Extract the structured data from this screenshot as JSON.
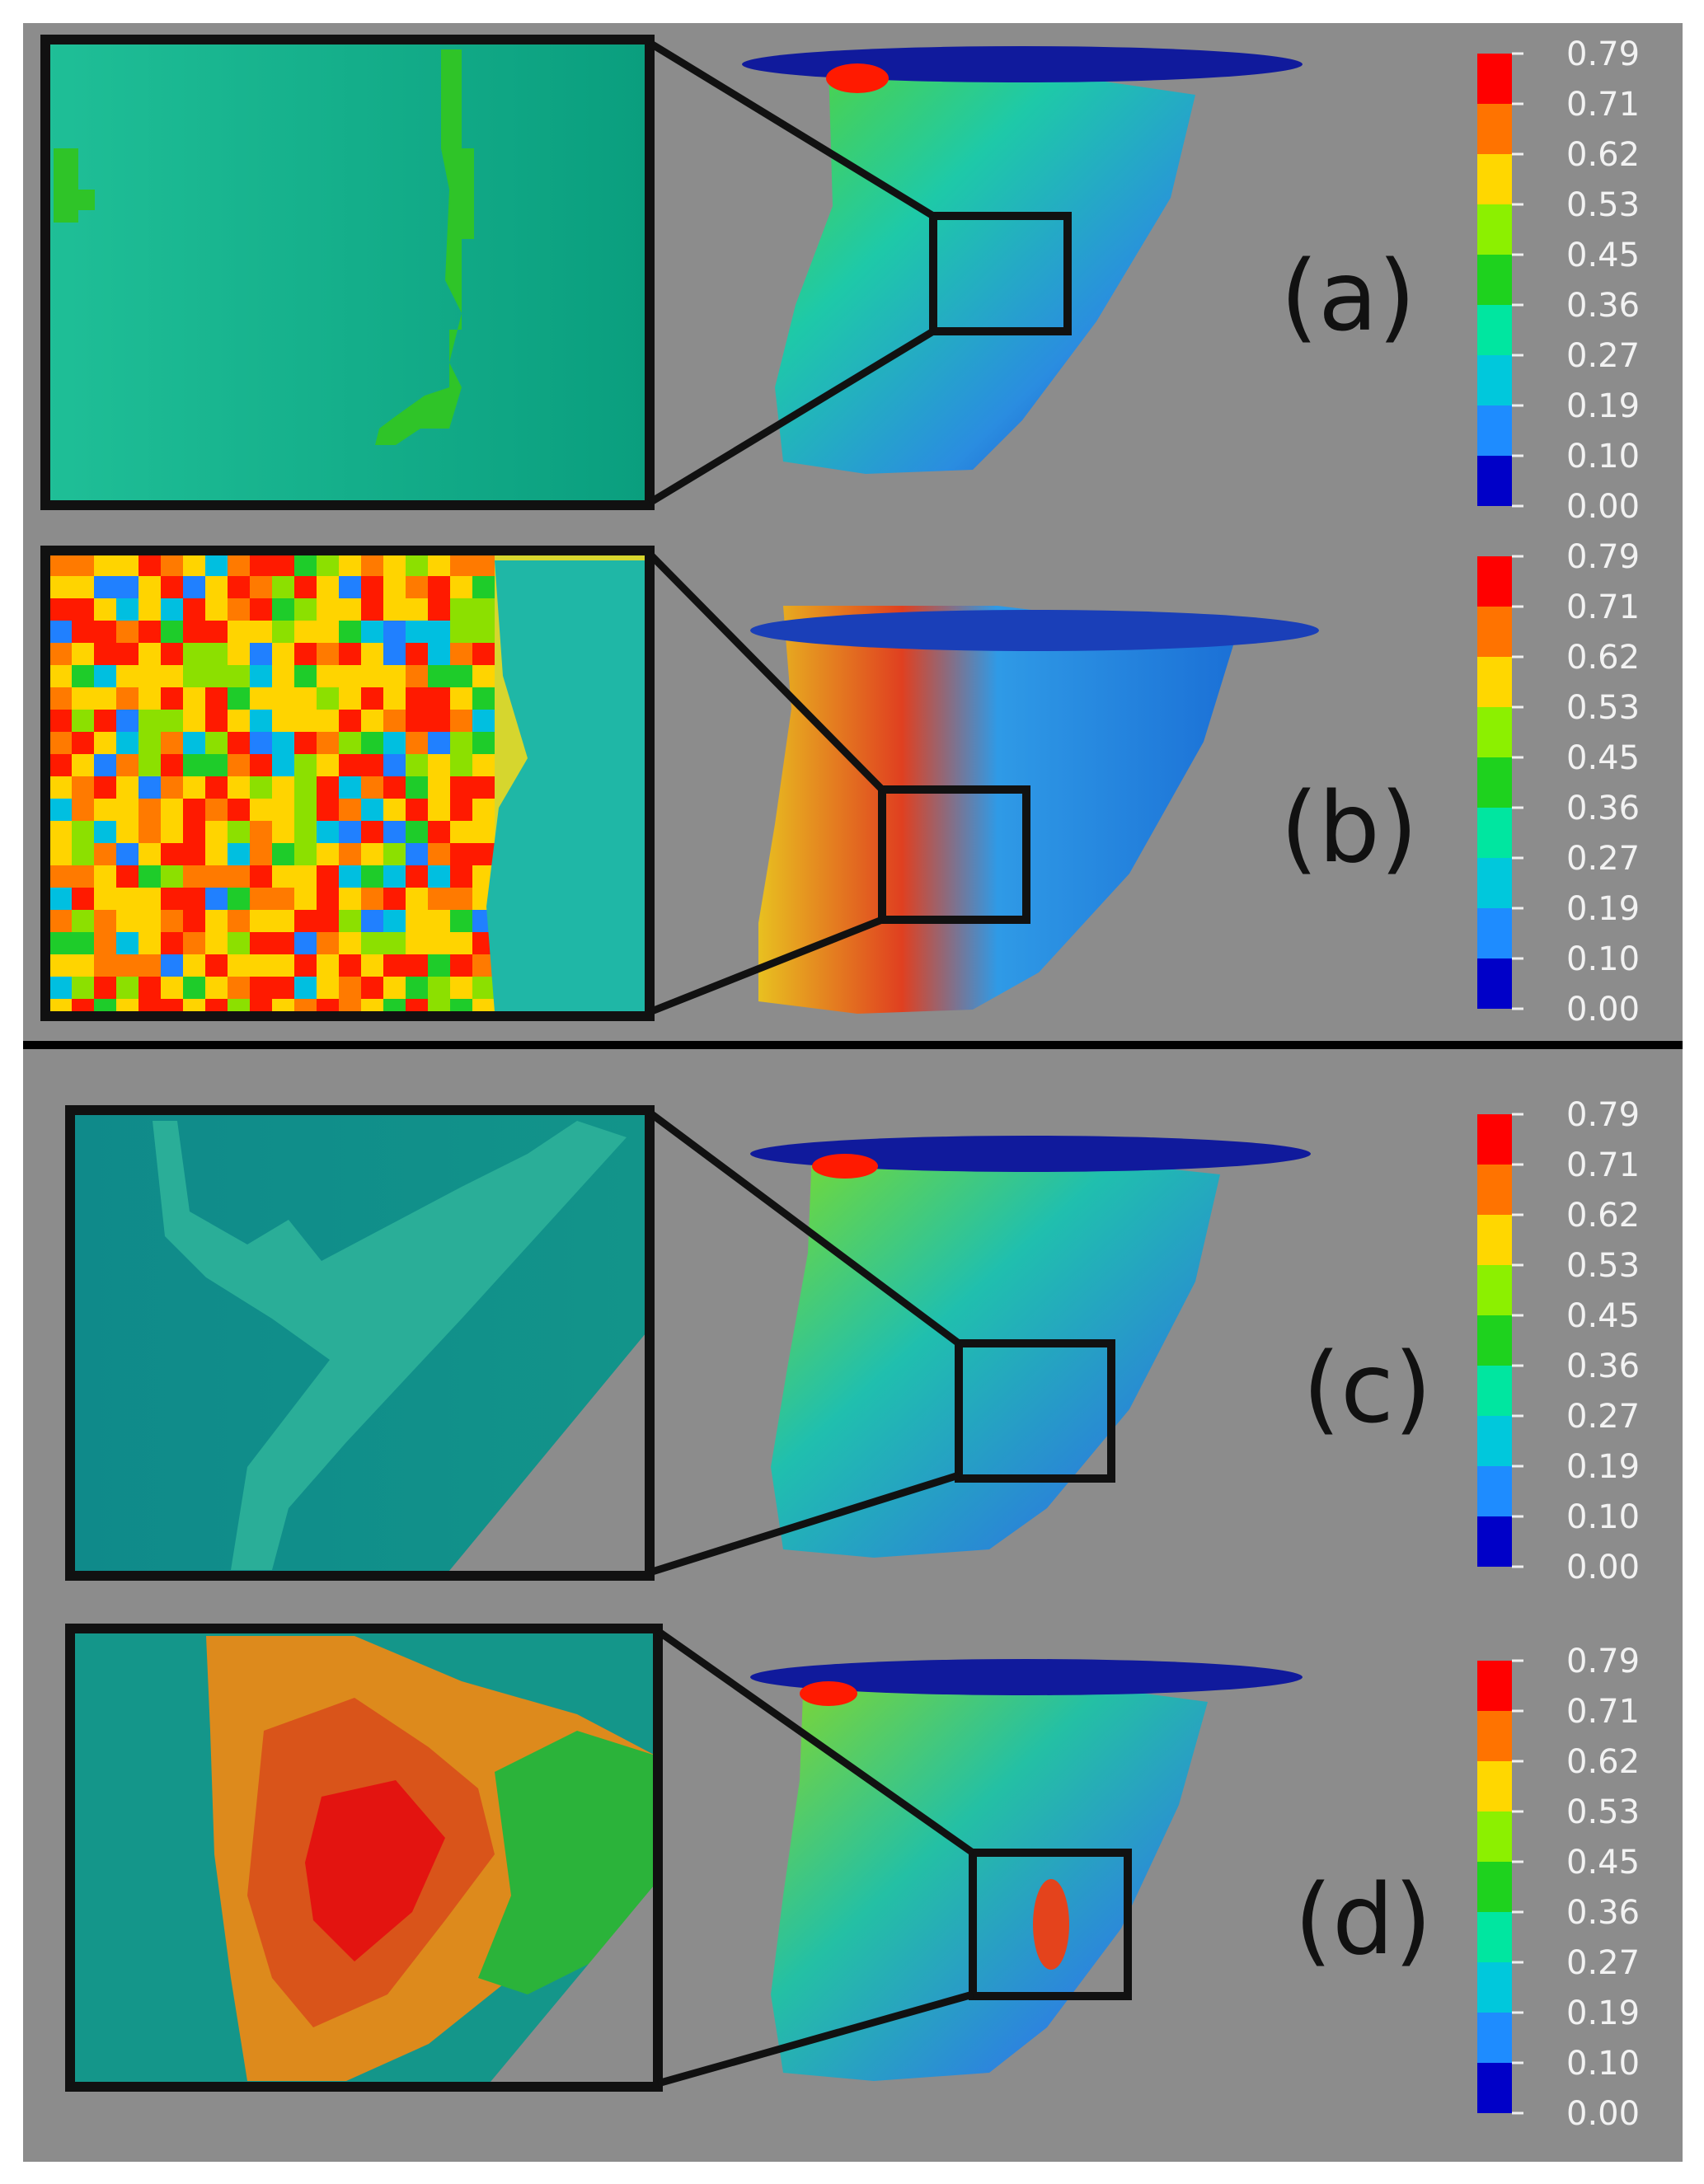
{
  "legend": {
    "ticks": [
      "0.79",
      "0.71",
      "0.62",
      "0.53",
      "0.45",
      "0.36",
      "0.27",
      "0.19",
      "0.10",
      "0.00"
    ],
    "colors": [
      "#ff0000",
      "#ff7300",
      "#ffd700",
      "#8cf000",
      "#1ed21e",
      "#00e6a0",
      "#00c8dc",
      "#1e8cff",
      "#0000c8"
    ]
  },
  "panels": [
    {
      "label": "(a)",
      "inset_pattern": "smooth-teal"
    },
    {
      "label": "(b)",
      "inset_pattern": "mixed-hotspot"
    },
    {
      "label": "(c)",
      "inset_pattern": "smooth-dark-teal"
    },
    {
      "label": "(d)",
      "inset_pattern": "red-orange-band"
    }
  ],
  "colors": {
    "background": "#8c8c8c",
    "frame": "#111111",
    "divider": "#000000"
  }
}
